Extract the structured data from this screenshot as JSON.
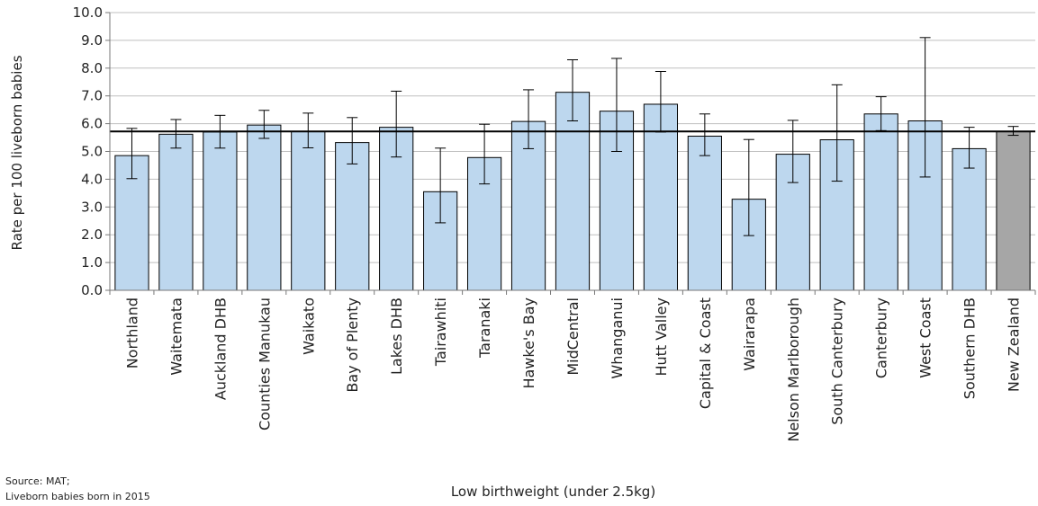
{
  "chart_data": {
    "type": "bar",
    "xlabel": "Low birthweight (under 2.5kg)",
    "ylabel": "Rate per 100 liveborn babies",
    "ylim": [
      0,
      10
    ],
    "yticks": [
      "0.0",
      "1.0",
      "2.0",
      "3.0",
      "4.0",
      "5.0",
      "6.0",
      "7.0",
      "8.0",
      "9.0",
      "10.0"
    ],
    "grid": true,
    "reference_line": 5.72,
    "categories": [
      "Northland",
      "Waitemata",
      "Auckland DHB",
      "Counties Manukau",
      "Waikato",
      "Bay of Plenty",
      "Lakes DHB",
      "Tairawhiti",
      "Taranaki",
      "Hawke's Bay",
      "MidCentral",
      "Whanganui",
      "Hutt Valley",
      "Capital & Coast",
      "Wairarapa",
      "Nelson Marlborough",
      "South Canterbury",
      "Canterbury",
      "West Coast",
      "Southern DHB",
      "New Zealand"
    ],
    "values": [
      4.85,
      5.62,
      5.7,
      5.95,
      5.72,
      5.32,
      5.87,
      3.55,
      4.78,
      6.08,
      7.13,
      6.45,
      6.7,
      5.55,
      3.28,
      4.9,
      5.42,
      6.35,
      6.1,
      5.1,
      5.72
    ],
    "error_low": [
      4.02,
      5.12,
      5.12,
      5.47,
      5.13,
      4.55,
      4.8,
      2.43,
      3.83,
      5.1,
      6.1,
      5.0,
      5.7,
      4.85,
      1.97,
      3.88,
      3.93,
      5.75,
      4.08,
      4.4,
      5.58
    ],
    "error_high": [
      5.83,
      6.15,
      6.3,
      6.48,
      6.38,
      6.22,
      7.17,
      5.12,
      5.98,
      7.22,
      8.3,
      8.35,
      7.88,
      6.35,
      5.43,
      6.12,
      7.4,
      6.97,
      9.1,
      5.87,
      5.9
    ],
    "colors": {
      "bar": "#bdd7ee",
      "highlight": "#a6a6a6",
      "border": "#000000",
      "grid": "#bfbfbf"
    }
  },
  "notes": {
    "source": "Source: MAT;",
    "population": "Liveborn babies born in 2015"
  }
}
